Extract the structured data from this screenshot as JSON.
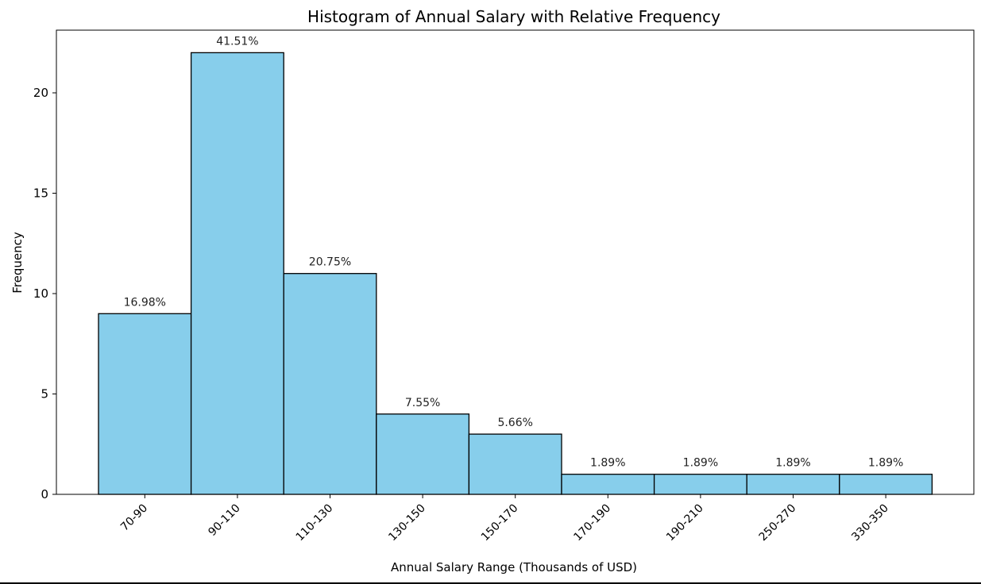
{
  "chart_data": {
    "type": "bar",
    "title": "Histogram of Annual Salary with Relative Frequency",
    "xlabel": "Annual Salary Range (Thousands of USD)",
    "ylabel": "Frequency",
    "categories": [
      "70-90",
      "90-110",
      "110-130",
      "130-150",
      "150-170",
      "170-190",
      "190-210",
      "250-270",
      "330-350"
    ],
    "values": [
      9,
      22,
      11,
      4,
      3,
      1,
      1,
      1,
      1
    ],
    "labels": [
      "16.98%",
      "41.51%",
      "20.75%",
      "7.55%",
      "5.66%",
      "1.89%",
      "1.89%",
      "1.89%",
      "1.89%"
    ],
    "yticks": [
      "0",
      "5",
      "10",
      "15",
      "20"
    ],
    "ylim": [
      0,
      22
    ],
    "grid": false,
    "legend": "none",
    "colors": {
      "bar_fill": "#87CEEB",
      "bar_edge": "#000000"
    }
  }
}
